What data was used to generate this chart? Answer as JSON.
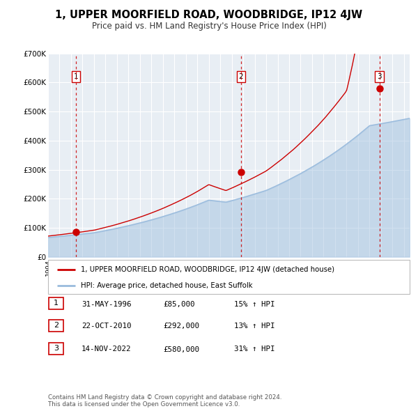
{
  "title": "1, UPPER MOORFIELD ROAD, WOODBRIDGE, IP12 4JW",
  "subtitle": "Price paid vs. HM Land Registry's House Price Index (HPI)",
  "sale_label": "1, UPPER MOORFIELD ROAD, WOODBRIDGE, IP12 4JW (detached house)",
  "hpi_label": "HPI: Average price, detached house, East Suffolk",
  "sales": [
    {
      "date_num": 1996.42,
      "price": 85000,
      "label": "1",
      "date_str": "31-MAY-1996",
      "pct": "15%"
    },
    {
      "date_num": 2010.81,
      "price": 292000,
      "label": "2",
      "date_str": "22-OCT-2010",
      "pct": "13%"
    },
    {
      "date_num": 2022.87,
      "price": 580000,
      "label": "3",
      "date_str": "14-NOV-2022",
      "pct": "31%"
    }
  ],
  "sale_color": "#cc0000",
  "hpi_color": "#99bbdd",
  "dashed_line_color": "#cc0000",
  "background_color": "#ffffff",
  "plot_bg_color": "#e8eef4",
  "grid_color": "#ffffff",
  "ylim": [
    0,
    700000
  ],
  "xlim": [
    1994,
    2025.5
  ],
  "yticks": [
    0,
    100000,
    200000,
    300000,
    400000,
    500000,
    600000,
    700000
  ],
  "ytick_labels": [
    "£0",
    "£100K",
    "£200K",
    "£300K",
    "£400K",
    "£500K",
    "£600K",
    "£700K"
  ],
  "footer": "Contains HM Land Registry data © Crown copyright and database right 2024.\nThis data is licensed under the Open Government Licence v3.0.",
  "table_rows": [
    [
      "1",
      "31-MAY-1996",
      "£85,000",
      "15% ↑ HPI"
    ],
    [
      "2",
      "22-OCT-2010",
      "£292,000",
      "13% ↑ HPI"
    ],
    [
      "3",
      "14-NOV-2022",
      "£580,000",
      "31% ↑ HPI"
    ]
  ]
}
